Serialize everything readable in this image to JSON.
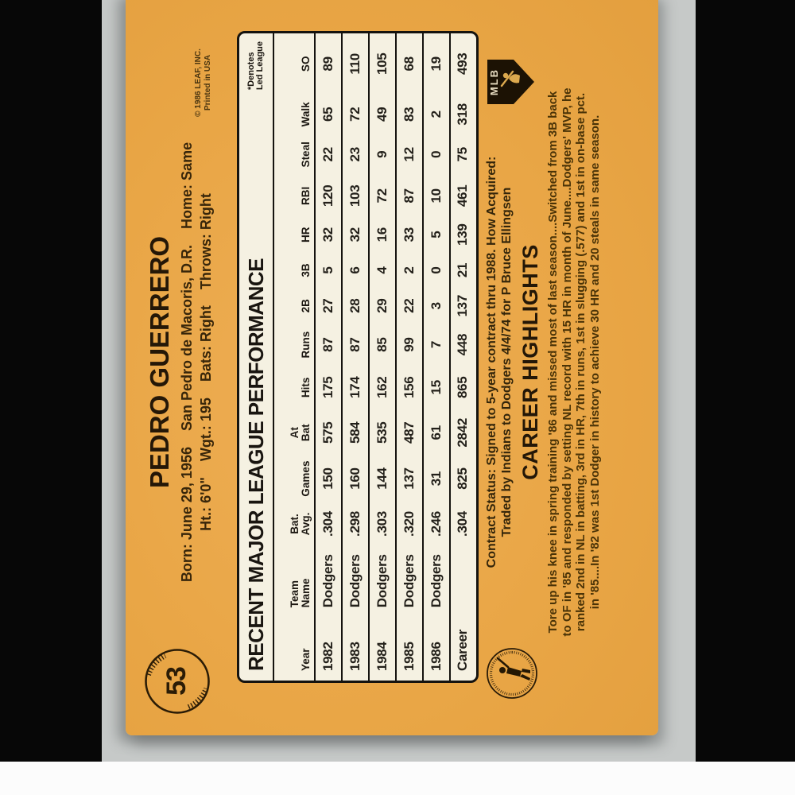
{
  "colors": {
    "card_orange": "#e9a646",
    "table_cream": "#f5f1e2",
    "ink_dark": "#241707",
    "ink_brown": "#4a3307",
    "backdrop_gray": "#c6c9c8",
    "side_bands": "#070707"
  },
  "card": {
    "number": "53",
    "player_name": "PEDRO GUERRERO",
    "bio_line1": "Born: June 29, 1956    San Pedro de Macoris, D.R.    Home: Same",
    "bio_line2": "Ht.: 6'0\"    Wgt.: 195    Bats: Right    Throws: Right",
    "credit": "© 1986 LEAF, INC.\nPrinted in USA",
    "mlb_logo_text": "MLB",
    "contract_line1": "Contract Status: Signed to 5-year contract thru 1988. How Acquired:",
    "contract_line2": "Traded by Indians to Dodgers 4/4/74 for P Bruce Ellingsen",
    "career_heading": "CAREER HIGHLIGHTS",
    "highlights": [
      "Tore up his knee in spring training '86 and missed most of last season....Switched from 3B back",
      "to OF in '85 and responded by setting NL record with 15 HR in month of June....Dodgers' MVP, he",
      "ranked 2nd in NL in batting, 3rd in HR, 7th in runs, 1st in slugging (.577) and 1st in on-base pct.",
      "in '85....In '82 was 1st Dodger in history to achieve 30 HR and 20 steals in same season."
    ]
  },
  "chart_data": {
    "type": "table",
    "title": "RECENT MAJOR LEAGUE PERFORMANCE",
    "note": "*Denotes\nLed League",
    "columns": [
      "Year",
      "Team\nName",
      "Bat.\nAvg.",
      "Games",
      "At\nBat",
      "Hits",
      "Runs",
      "2B",
      "3B",
      "HR",
      "RBI",
      "Steal",
      "Walk",
      "SO"
    ],
    "rows": [
      [
        "1982",
        "Dodgers",
        ".304",
        "150",
        "575",
        "175",
        "87",
        "27",
        "5",
        "32",
        "120",
        "22",
        "65",
        "89"
      ],
      [
        "1983",
        "Dodgers",
        ".298",
        "160",
        "584",
        "174",
        "87",
        "28",
        "6",
        "32",
        "103",
        "23",
        "72",
        "110"
      ],
      [
        "1984",
        "Dodgers",
        ".303",
        "144",
        "535",
        "162",
        "85",
        "29",
        "4",
        "16",
        "72",
        "9",
        "49",
        "105"
      ],
      [
        "1985",
        "Dodgers",
        ".320",
        "137",
        "487",
        "156",
        "99",
        "22",
        "2",
        "33",
        "87",
        "12",
        "83",
        "68"
      ],
      [
        "1986",
        "Dodgers",
        ".246",
        "31",
        "61",
        "15",
        "7",
        "3",
        "0",
        "5",
        "10",
        "0",
        "2",
        "19"
      ],
      [
        "Career",
        "",
        ".304",
        "825",
        "2842",
        "865",
        "448",
        "137",
        "21",
        "139",
        "461",
        "75",
        "318",
        "493"
      ]
    ]
  }
}
